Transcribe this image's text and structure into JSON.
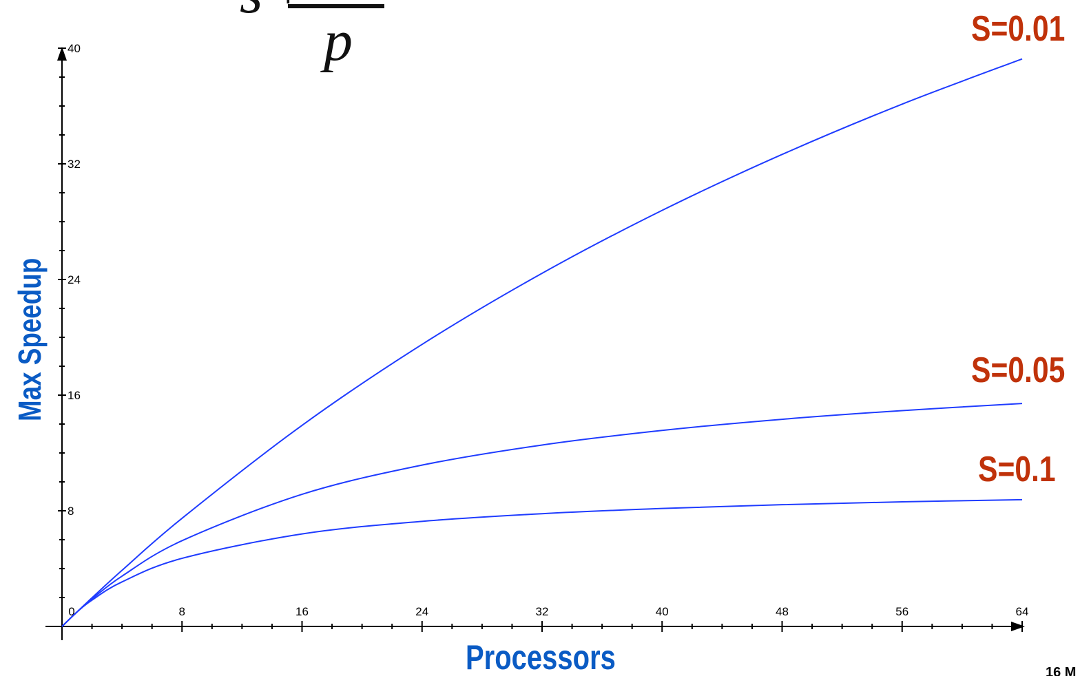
{
  "formula": {
    "numerator_left": "s",
    "plus": "+",
    "denominator": "p"
  },
  "footer_fragment": "16 M",
  "colors": {
    "curve": "#1f3cff",
    "series_label": "#c0320a",
    "axis_label": "#0a5bc4"
  },
  "chart_data": {
    "type": "line",
    "title": "",
    "xlabel": "Processors",
    "ylabel": "Max Speedup",
    "xlim": [
      0,
      64
    ],
    "ylim": [
      0,
      40
    ],
    "x_ticks": [
      0,
      8,
      16,
      24,
      32,
      40,
      48,
      56,
      64
    ],
    "y_ticks": [
      8,
      16,
      24,
      32,
      40
    ],
    "x_tick_labels": [
      "0",
      "8",
      "16",
      "24",
      "32",
      "40",
      "48",
      "56",
      "64"
    ],
    "y_tick_labels": [
      "8",
      "16",
      "24",
      "32",
      "40"
    ],
    "x": [
      0,
      1,
      2,
      4,
      8,
      16,
      24,
      32,
      40,
      48,
      56,
      64
    ],
    "series": [
      {
        "name": "S=0.01",
        "s": 0.01,
        "values": [
          0,
          1.0,
          1.98,
          3.88,
          7.48,
          13.91,
          19.51,
          24.43,
          28.78,
          32.65,
          36.13,
          39.26
        ]
      },
      {
        "name": "S=0.05",
        "s": 0.05,
        "values": [
          0,
          1.0,
          1.9,
          3.48,
          5.93,
          9.14,
          11.16,
          12.55,
          13.56,
          14.33,
          14.93,
          15.42
        ]
      },
      {
        "name": "S=0.1",
        "s": 0.1,
        "values": [
          0,
          1.0,
          1.82,
          3.08,
          4.71,
          6.4,
          7.27,
          7.8,
          8.16,
          8.42,
          8.62,
          8.77
        ]
      }
    ],
    "grid": false,
    "legend": "none"
  }
}
